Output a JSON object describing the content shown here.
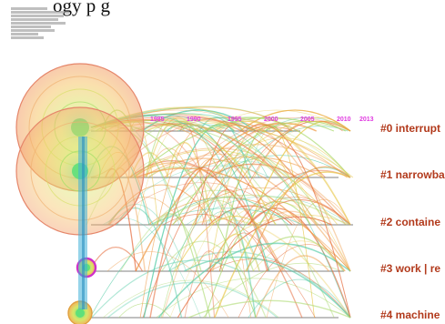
{
  "header": {
    "text_fragment": "ogy p                   g"
  },
  "colors": {
    "label": "#b23a1c",
    "year": "#e03ae0",
    "axis": "#9a9a9a",
    "link_colors": [
      "#f0a050",
      "#a8d86a",
      "#58cca8",
      "#e8c84a",
      "#e56a3a"
    ]
  },
  "timeline": {
    "years": [
      "1985",
      "1990",
      "1995",
      "2000",
      "2005",
      "2010",
      "2013"
    ]
  },
  "clusters": [
    {
      "label": "#0 interrupt"
    },
    {
      "label": "#1 narrowba"
    },
    {
      "label": "#2 containe"
    },
    {
      "label": "#3 work | re"
    },
    {
      "label": "#4 machine"
    }
  ]
}
